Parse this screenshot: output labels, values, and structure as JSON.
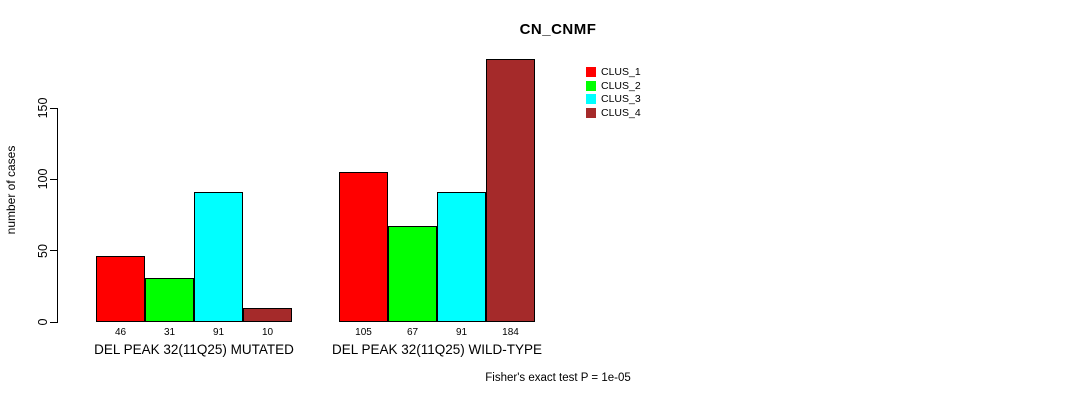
{
  "chart_data": {
    "type": "bar",
    "title": "CN_CNMF",
    "ylabel": "number of cases",
    "xlabel": "",
    "ylim": [
      0,
      150
    ],
    "yticks": [
      0,
      50,
      100,
      150
    ],
    "grid": false,
    "legend_position": "top-right",
    "categories": [
      "DEL PEAK 32(11Q25) MUTATED",
      "DEL PEAK 32(11Q25) WILD-TYPE"
    ],
    "series": [
      {
        "name": "CLUS_1",
        "color": "#ff0000",
        "values": [
          46,
          105
        ]
      },
      {
        "name": "CLUS_2",
        "color": "#00ff00",
        "values": [
          31,
          67
        ]
      },
      {
        "name": "CLUS_3",
        "color": "#00ffff",
        "values": [
          91,
          91
        ]
      },
      {
        "name": "CLUS_4",
        "color": "#a52a2a",
        "values": [
          10,
          184
        ]
      }
    ],
    "bar_values_shown_under_bars": true,
    "annotation": "Fisher's exact test P = 1e-05"
  },
  "colors": {
    "background": "#ffffff",
    "axis": "#000000",
    "text": "#000000"
  }
}
